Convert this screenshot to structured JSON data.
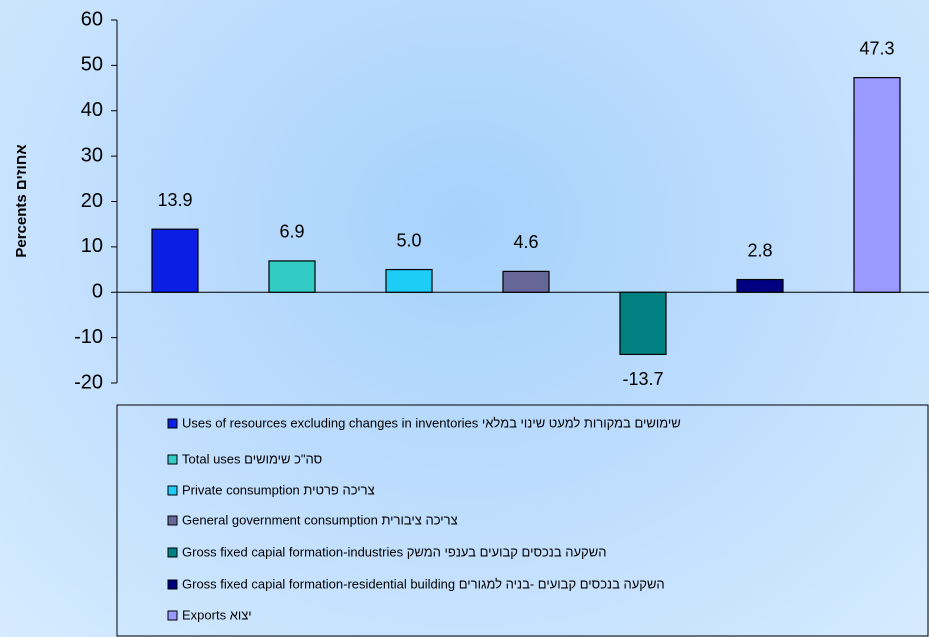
{
  "chart_data": {
    "type": "bar",
    "y_label": "Percents אחוזים",
    "ylim": [
      -20,
      60
    ],
    "yticks": [
      -20,
      -10,
      0,
      10,
      20,
      30,
      40,
      50,
      60
    ],
    "series": [
      {
        "name": "Uses of resources excluding changes in inventories שימושים במקורות למעט שינוי במלאי",
        "color": "#0a1ee6",
        "values": [
          13.9
        ]
      },
      {
        "name": "Total uses סה\"כ שימושים",
        "color": "#33ccc4",
        "values": [
          6.9
        ]
      },
      {
        "name": "Private consumption צריכה פרטית",
        "color": "#1ecdf5",
        "values": [
          5.0
        ],
        "value_labels": [
          "5.0"
        ]
      },
      {
        "name": "General government consumption צריכה ציבורית",
        "color": "#666699",
        "values": [
          4.6
        ]
      },
      {
        "name": "Gross fixed capial formation-industries השקעה בנכסים קבועים בענפי המשק",
        "color": "#008080",
        "values": [
          -13.7
        ]
      },
      {
        "name": "Gross fixed capial formation-residential building השקעה בנכסים קבועים -בניה למגורים",
        "color": "#000080",
        "values": [
          2.8
        ]
      },
      {
        "name": "Exports יצוא",
        "color": "#9999ff",
        "values": [
          47.3
        ]
      }
    ]
  }
}
